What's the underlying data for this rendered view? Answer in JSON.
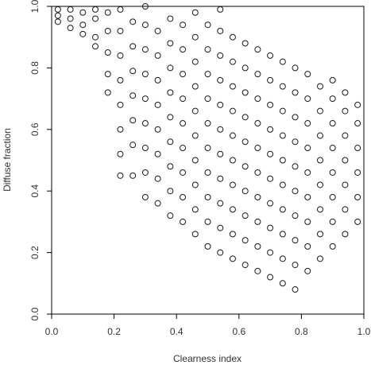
{
  "chart_data": {
    "type": "scatter",
    "xlabel": "Clearness index",
    "ylabel": "Diffuse fraction",
    "color": "#1a1a1a",
    "x": [
      0.02,
      0.02,
      0.02,
      0.06,
      0.06,
      0.06,
      0.1,
      0.1,
      0.1,
      0.14,
      0.14,
      0.14,
      0.14,
      0.18,
      0.18,
      0.18,
      0.18,
      0.18,
      0.22,
      0.22,
      0.22,
      0.22,
      0.22,
      0.22,
      0.22,
      0.22,
      0.26,
      0.26,
      0.26,
      0.26,
      0.26,
      0.26,
      0.26,
      0.3,
      0.3,
      0.3,
      0.3,
      0.3,
      0.3,
      0.3,
      0.3,
      0.3,
      0.34,
      0.34,
      0.34,
      0.34,
      0.34,
      0.34,
      0.34,
      0.34,
      0.38,
      0.38,
      0.38,
      0.38,
      0.38,
      0.38,
      0.38,
      0.38,
      0.38,
      0.42,
      0.42,
      0.42,
      0.42,
      0.42,
      0.42,
      0.42,
      0.42,
      0.42,
      0.46,
      0.46,
      0.46,
      0.46,
      0.46,
      0.46,
      0.46,
      0.46,
      0.46,
      0.46,
      0.5,
      0.5,
      0.5,
      0.5,
      0.5,
      0.5,
      0.5,
      0.5,
      0.5,
      0.5,
      0.54,
      0.54,
      0.54,
      0.54,
      0.54,
      0.54,
      0.54,
      0.54,
      0.54,
      0.54,
      0.54,
      0.58,
      0.58,
      0.58,
      0.58,
      0.58,
      0.58,
      0.58,
      0.58,
      0.58,
      0.58,
      0.62,
      0.62,
      0.62,
      0.62,
      0.62,
      0.62,
      0.62,
      0.62,
      0.62,
      0.62,
      0.66,
      0.66,
      0.66,
      0.66,
      0.66,
      0.66,
      0.66,
      0.66,
      0.66,
      0.66,
      0.7,
      0.7,
      0.7,
      0.7,
      0.7,
      0.7,
      0.7,
      0.7,
      0.7,
      0.7,
      0.74,
      0.74,
      0.74,
      0.74,
      0.74,
      0.74,
      0.74,
      0.74,
      0.74,
      0.74,
      0.78,
      0.78,
      0.78,
      0.78,
      0.78,
      0.78,
      0.78,
      0.78,
      0.78,
      0.78,
      0.82,
      0.82,
      0.82,
      0.82,
      0.82,
      0.82,
      0.82,
      0.82,
      0.82,
      0.86,
      0.86,
      0.86,
      0.86,
      0.86,
      0.86,
      0.86,
      0.86,
      0.9,
      0.9,
      0.9,
      0.9,
      0.9,
      0.9,
      0.9,
      0.9,
      0.94,
      0.94,
      0.94,
      0.94,
      0.94,
      0.94,
      0.94,
      0.98,
      0.98,
      0.98,
      0.98,
      0.98,
      0.98
    ],
    "y": [
      0.97,
      0.99,
      0.95,
      0.96,
      0.93,
      0.99,
      0.94,
      0.98,
      0.91,
      0.9,
      0.96,
      0.99,
      0.87,
      0.78,
      0.85,
      0.92,
      0.98,
      0.72,
      0.52,
      0.6,
      0.68,
      0.76,
      0.84,
      0.92,
      0.99,
      0.45,
      0.45,
      0.55,
      0.63,
      0.71,
      0.79,
      0.87,
      0.95,
      0.38,
      0.46,
      0.54,
      0.62,
      0.7,
      0.78,
      0.86,
      0.94,
      1.0,
      0.36,
      0.44,
      0.52,
      0.6,
      0.68,
      0.76,
      0.84,
      0.92,
      0.32,
      0.4,
      0.48,
      0.56,
      0.64,
      0.72,
      0.8,
      0.88,
      0.96,
      0.3,
      0.38,
      0.46,
      0.54,
      0.62,
      0.7,
      0.78,
      0.86,
      0.94,
      0.26,
      0.34,
      0.42,
      0.5,
      0.58,
      0.66,
      0.74,
      0.82,
      0.9,
      0.98,
      0.22,
      0.3,
      0.38,
      0.46,
      0.54,
      0.62,
      0.7,
      0.78,
      0.86,
      0.94,
      0.2,
      0.28,
      0.36,
      0.44,
      0.52,
      0.6,
      0.68,
      0.76,
      0.84,
      0.92,
      0.99,
      0.18,
      0.26,
      0.34,
      0.42,
      0.5,
      0.58,
      0.66,
      0.74,
      0.82,
      0.9,
      0.16,
      0.24,
      0.32,
      0.4,
      0.48,
      0.56,
      0.64,
      0.72,
      0.8,
      0.88,
      0.14,
      0.22,
      0.3,
      0.38,
      0.46,
      0.54,
      0.62,
      0.7,
      0.78,
      0.86,
      0.12,
      0.2,
      0.28,
      0.36,
      0.44,
      0.52,
      0.6,
      0.68,
      0.76,
      0.84,
      0.1,
      0.18,
      0.26,
      0.34,
      0.42,
      0.5,
      0.58,
      0.66,
      0.74,
      0.82,
      0.08,
      0.16,
      0.24,
      0.32,
      0.4,
      0.48,
      0.56,
      0.64,
      0.72,
      0.8,
      0.14,
      0.22,
      0.3,
      0.38,
      0.46,
      0.54,
      0.62,
      0.7,
      0.78,
      0.18,
      0.26,
      0.34,
      0.42,
      0.5,
      0.58,
      0.66,
      0.74,
      0.22,
      0.3,
      0.38,
      0.46,
      0.54,
      0.62,
      0.7,
      0.76,
      0.26,
      0.34,
      0.42,
      0.5,
      0.58,
      0.66,
      0.72,
      0.3,
      0.38,
      0.46,
      0.54,
      0.62,
      0.68
    ],
    "xlim": [
      0,
      1
    ],
    "ylim": [
      0,
      1
    ],
    "xticks": [
      {
        "value": 0,
        "label": "0.0"
      },
      0.2,
      0.4,
      0.6,
      0.8,
      {
        "value": 1,
        "label": "1.0"
      }
    ],
    "yticks": [
      {
        "value": 0,
        "label": "0.0"
      },
      0.2,
      0.4,
      0.6,
      0.8,
      {
        "value": 1,
        "label": "1.0"
      }
    ]
  }
}
